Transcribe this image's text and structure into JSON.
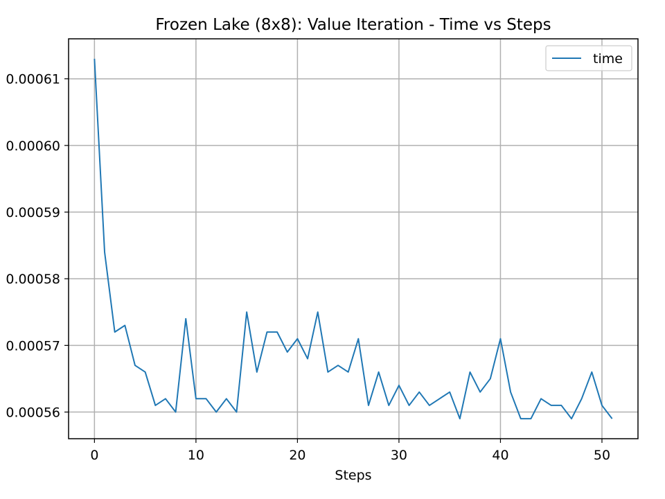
{
  "chart_data": {
    "type": "line",
    "title": "Frozen Lake (8x8): Value Iteration - Time vs Steps",
    "xlabel": "Steps",
    "ylabel": "",
    "xlim": [
      -2.55,
      53.55
    ],
    "ylim": [
      0.000556,
      0.000616
    ],
    "xticks": [
      0,
      10,
      20,
      30,
      40,
      50
    ],
    "xtick_labels": [
      "0",
      "10",
      "20",
      "30",
      "40",
      "50"
    ],
    "yticks": [
      0.00056,
      0.00057,
      0.00058,
      0.00059,
      0.0006,
      0.00061
    ],
    "ytick_labels": [
      "0.00056",
      "0.00057",
      "0.00058",
      "0.00059",
      "0.00060",
      "0.00061"
    ],
    "grid": true,
    "legend_position": "top-right",
    "series": [
      {
        "name": "time",
        "color": "#1f77b4",
        "x": [
          0,
          1,
          2,
          3,
          4,
          5,
          6,
          7,
          8,
          9,
          10,
          11,
          12,
          13,
          14,
          15,
          16,
          17,
          18,
          19,
          20,
          21,
          22,
          23,
          24,
          25,
          26,
          27,
          28,
          29,
          30,
          31,
          32,
          33,
          34,
          35,
          36,
          37,
          38,
          39,
          40,
          41,
          42,
          43,
          44,
          45,
          46,
          47,
          48,
          49,
          50,
          51
        ],
        "y": [
          0.000613,
          0.000584,
          0.000572,
          0.000573,
          0.000567,
          0.000566,
          0.000561,
          0.000562,
          0.00056,
          0.000574,
          0.000562,
          0.000562,
          0.00056,
          0.000562,
          0.00056,
          0.000575,
          0.000566,
          0.000572,
          0.000572,
          0.000569,
          0.000571,
          0.000568,
          0.000575,
          0.000566,
          0.000567,
          0.000566,
          0.000571,
          0.000561,
          0.000566,
          0.000561,
          0.000564,
          0.000561,
          0.000563,
          0.000561,
          0.000562,
          0.000563,
          0.000559,
          0.000566,
          0.000563,
          0.000565,
          0.000571,
          0.000563,
          0.000559,
          0.000559,
          0.000562,
          0.000561,
          0.000561,
          0.000559,
          0.000562,
          0.000566,
          0.000561,
          0.000559
        ]
      }
    ]
  }
}
